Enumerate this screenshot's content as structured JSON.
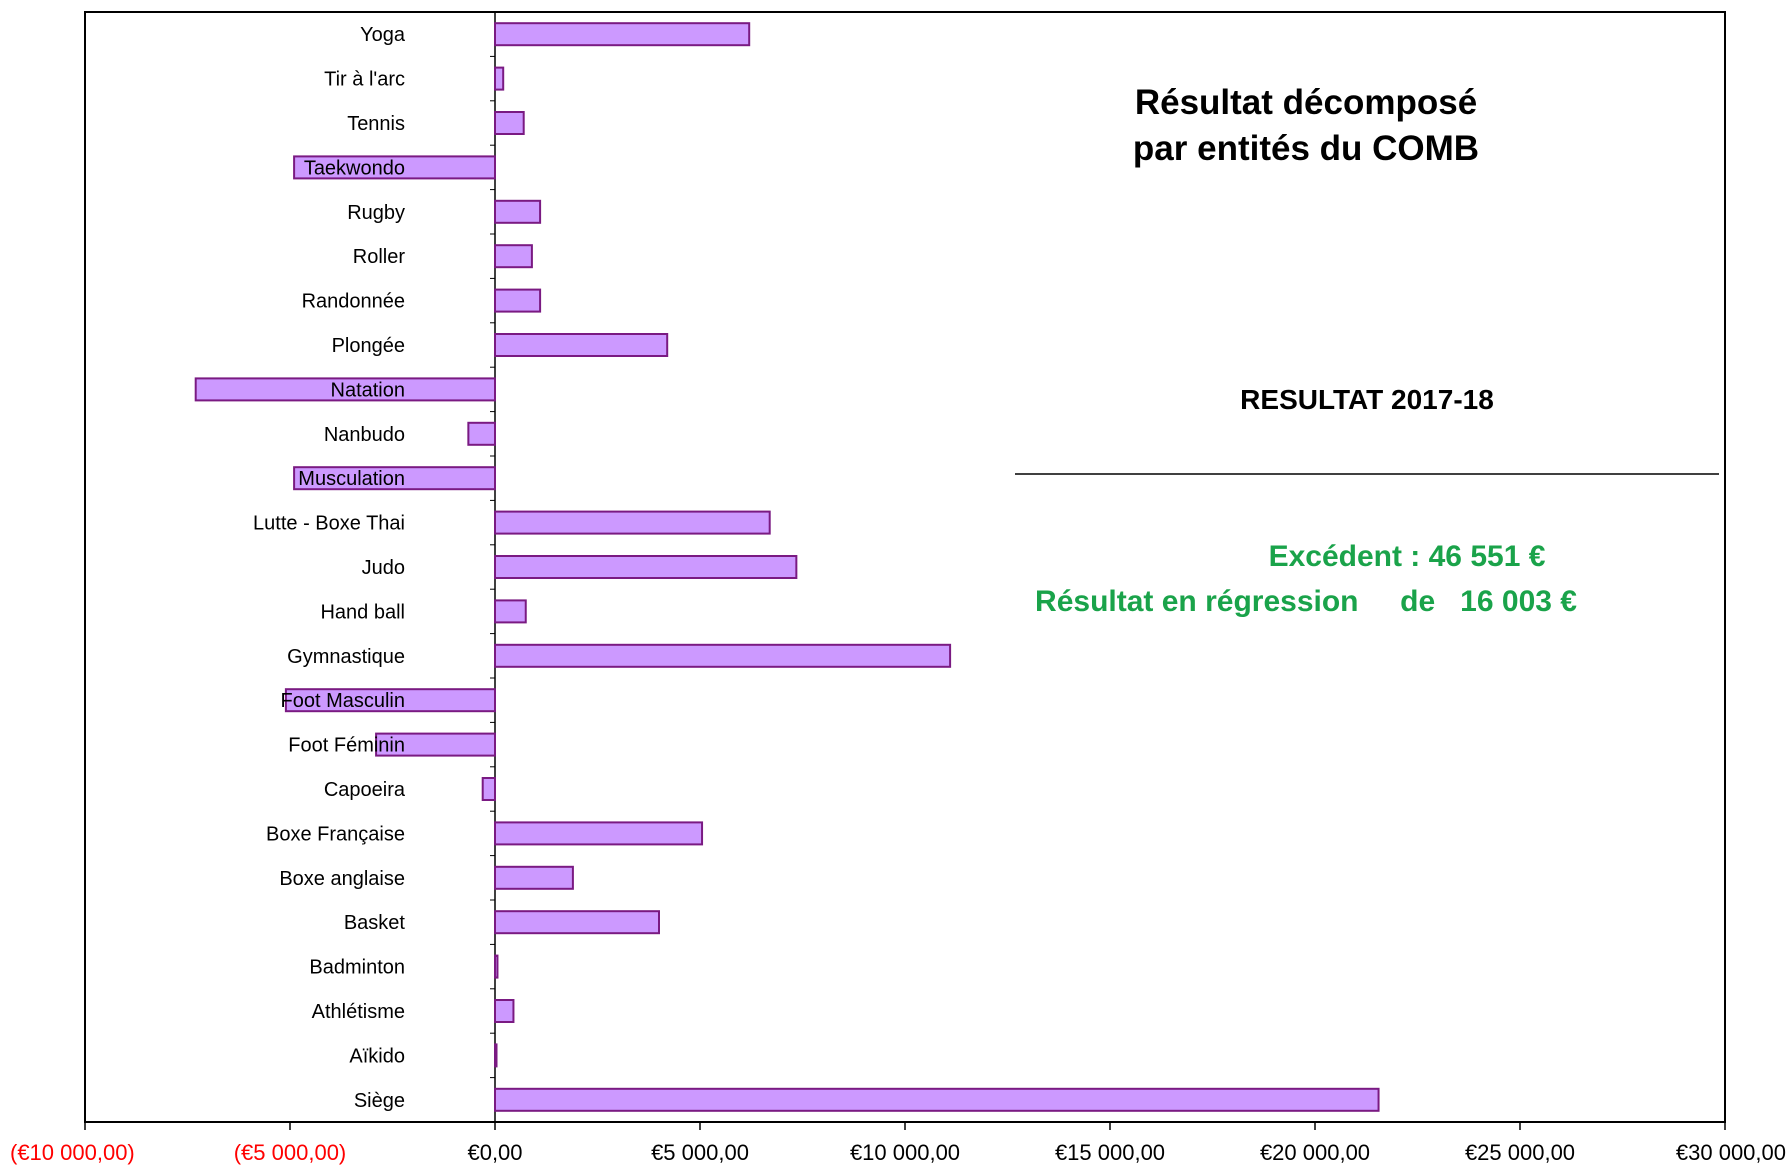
{
  "chart_data": {
    "type": "bar",
    "orientation": "horizontal",
    "title_lines": [
      "Résultat décomposé",
      "par entités du COMB"
    ],
    "subtitle": "RESULTAT 2017-18",
    "annotations": [
      "Excédent : 46 551 €",
      "Résultat en régression     de   16 003 €"
    ],
    "annotation_color": "#1aa34a",
    "categories": [
      "Yoga",
      "Tir à l'arc",
      "Tennis",
      "Taekwondo",
      "Rugby",
      "Roller",
      "Randonnée",
      "Plongée",
      "Natation",
      "Nanbudo",
      "Musculation",
      "Lutte - Boxe Thai",
      "Judo",
      "Hand ball",
      "Gymnastique",
      "Foot Masculin",
      "Foot Féminin",
      "Capoeira",
      "Boxe Française",
      "Boxe anglaise",
      "Basket",
      "Badminton",
      "Athlétisme",
      "Aïkido",
      "Siège"
    ],
    "values": [
      6200,
      200,
      700,
      -4900,
      1100,
      900,
      1100,
      4200,
      -7300,
      -650,
      -4900,
      6700,
      7350,
      750,
      11100,
      -5100,
      -2900,
      -300,
      5050,
      1900,
      4000,
      60,
      450,
      30,
      21550
    ],
    "xlim": [
      -10000,
      30000
    ],
    "xticks": [
      -10000,
      -5000,
      0,
      5000,
      10000,
      15000,
      20000,
      25000,
      30000
    ],
    "xtick_labels": [
      "(€10 000,00)",
      "(€5 000,00)",
      "€0,00",
      "€5 000,00",
      "€10 000,00",
      "€15 000,00",
      "€20 000,00",
      "€25 000,00",
      "€30 000,00"
    ],
    "negative_tick_color": "#ff0000",
    "bar_fill": "#cc99ff",
    "bar_stroke": "#7a1a82",
    "grid": false
  }
}
